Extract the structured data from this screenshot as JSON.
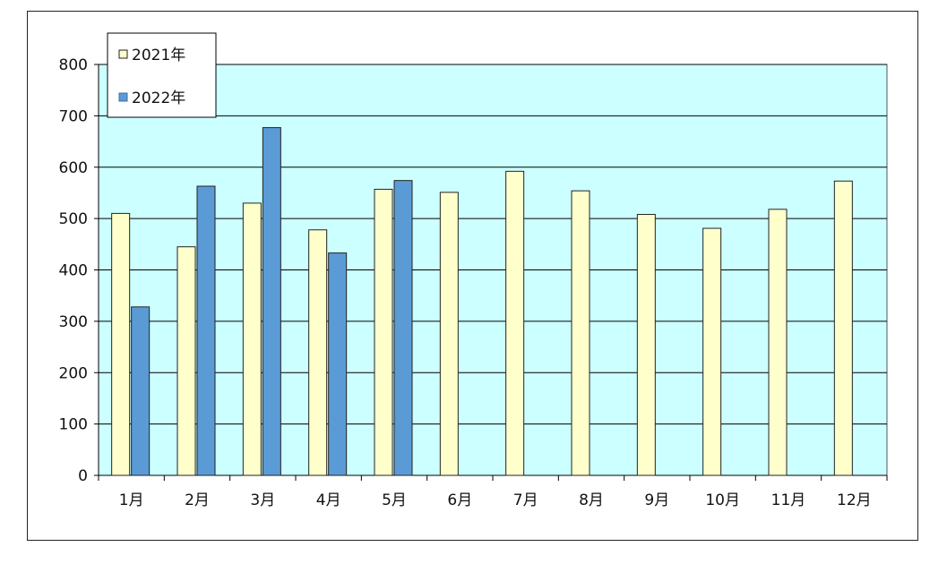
{
  "chart_data": {
    "type": "bar",
    "categories": [
      "1月",
      "2月",
      "3月",
      "4月",
      "5月",
      "6月",
      "7月",
      "8月",
      "9月",
      "10月",
      "11月",
      "12月"
    ],
    "series": [
      {
        "name": "2021年",
        "values": [
          510,
          445,
          530,
          478,
          557,
          551,
          592,
          554,
          508,
          481,
          518,
          573
        ],
        "color": "#ffffcc"
      },
      {
        "name": "2022年",
        "values": [
          328,
          563,
          677,
          433,
          574,
          null,
          null,
          null,
          null,
          null,
          null,
          null
        ],
        "color": "#5b9bd5"
      }
    ],
    "y_ticks": [
      "0",
      "100",
      "200",
      "300",
      "400",
      "500",
      "600",
      "700",
      "800"
    ],
    "ylim": [
      0,
      800
    ],
    "grid": true,
    "plot_background": "#ccffff",
    "legend_position": "top-left"
  }
}
